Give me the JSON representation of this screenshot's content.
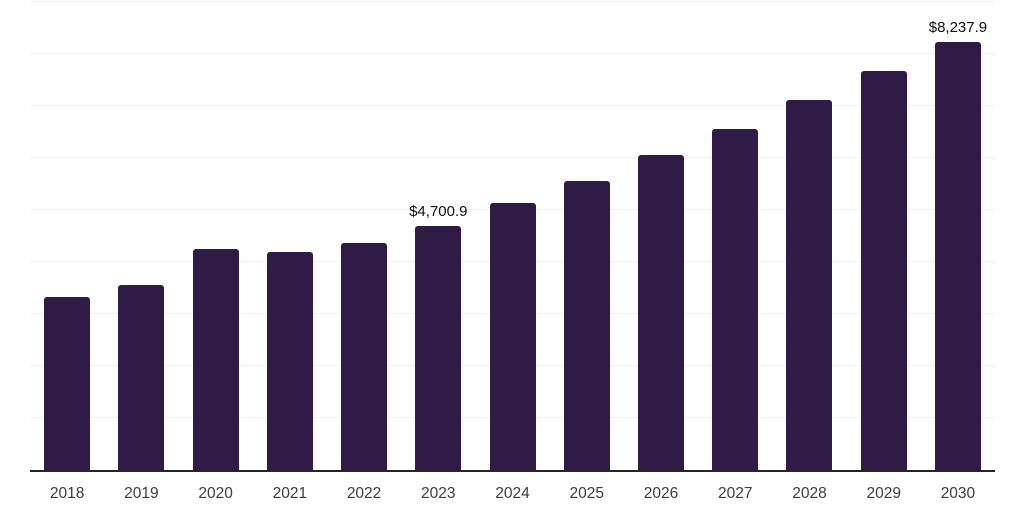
{
  "chart_data": {
    "type": "bar",
    "title": "",
    "xlabel": "",
    "ylabel": "",
    "categories": [
      "2018",
      "2019",
      "2020",
      "2021",
      "2022",
      "2023",
      "2024",
      "2025",
      "2026",
      "2027",
      "2028",
      "2029",
      "2030"
    ],
    "values": [
      3325,
      3560,
      4250,
      4190,
      4365,
      4700.9,
      5135,
      5555,
      6055,
      6555,
      7115,
      7680,
      8237.9
    ],
    "data_labels": [
      null,
      null,
      null,
      null,
      null,
      "$4,700.9",
      null,
      null,
      null,
      null,
      null,
      null,
      "$8,237.9"
    ],
    "ylim": [
      0,
      9000
    ],
    "grid_step": 1000,
    "grid": "horizontal-only",
    "y_tick_labels": "none",
    "legend": "none",
    "colors": {
      "bar": "#2F1B45",
      "gridline": "#f1f1f1",
      "axis_line": "#262626",
      "tick_label": "#3d3d3d",
      "data_label": "#111111",
      "background": "#ffffff"
    }
  }
}
